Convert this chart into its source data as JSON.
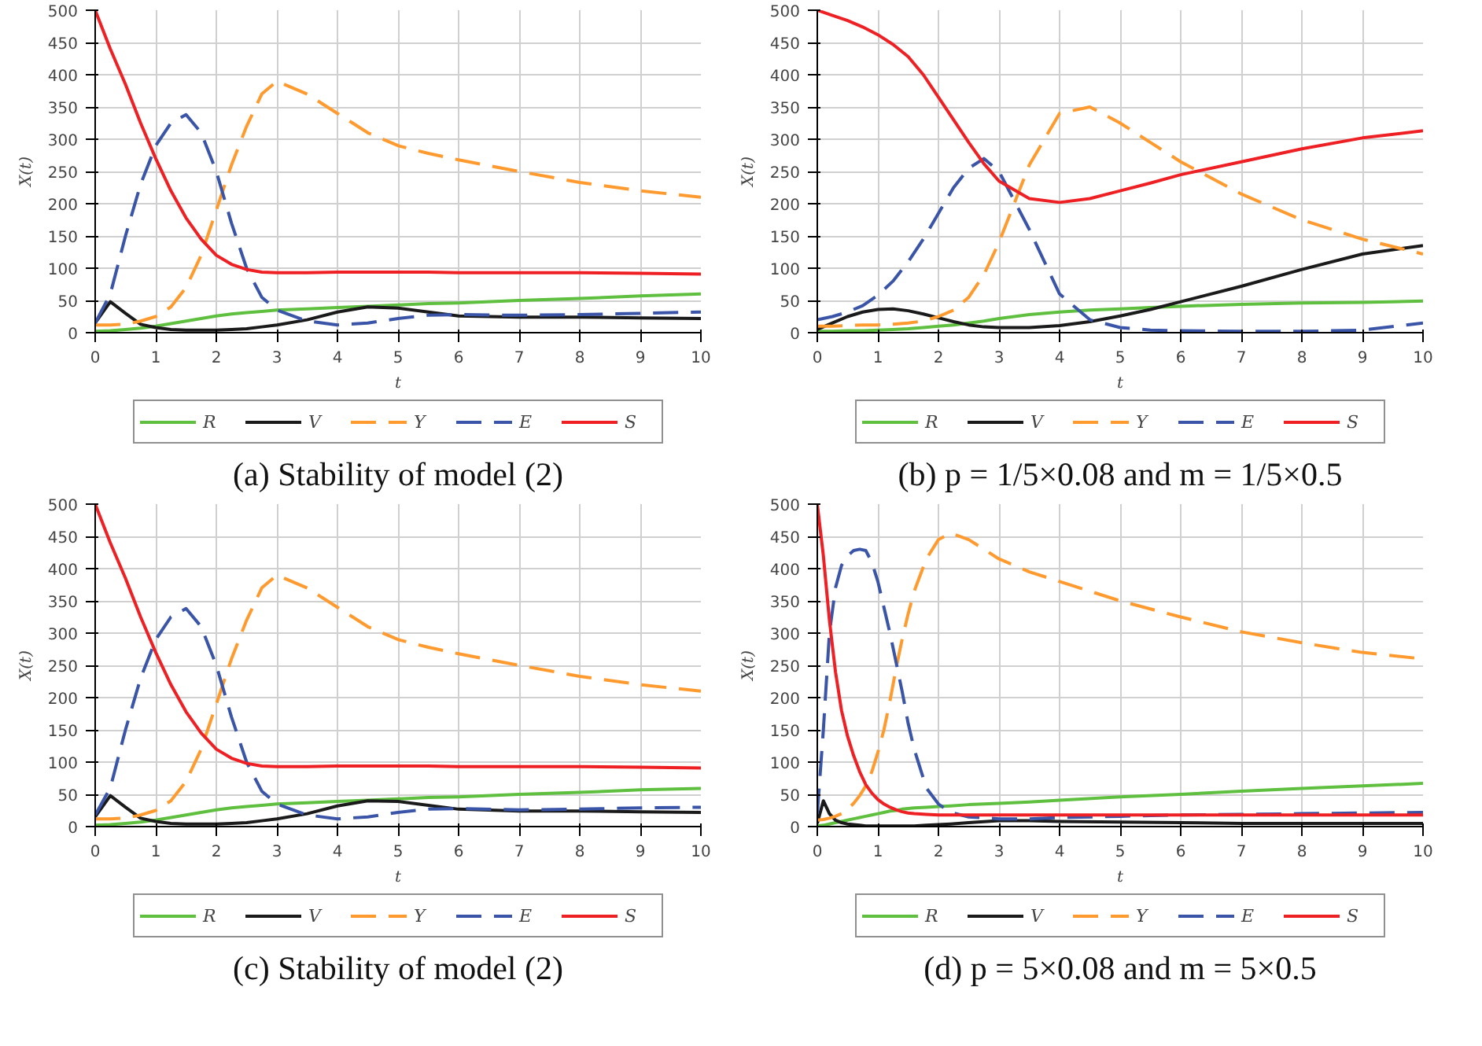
{
  "chart_data": [
    {
      "type": "line",
      "title": "(a) Stability of model (2)",
      "xlabel": "t",
      "ylabel": "X(t)",
      "xlim": [
        0,
        10
      ],
      "ylim": [
        0,
        500
      ],
      "xticks": [
        0,
        1,
        2,
        3,
        4,
        5,
        6,
        7,
        8,
        9,
        10
      ],
      "yticks": [
        0,
        50,
        100,
        150,
        200,
        250,
        300,
        350,
        400,
        450,
        500
      ],
      "grid": true,
      "legend": "bottom",
      "x": [
        0,
        0.25,
        0.5,
        0.75,
        1,
        1.25,
        1.5,
        1.75,
        2,
        2.25,
        2.5,
        2.75,
        3,
        3.5,
        4,
        4.5,
        5,
        5.5,
        6,
        7,
        8,
        9,
        10
      ],
      "series": [
        {
          "name": "R",
          "color": "#5fbf3f",
          "line_style": "solid",
          "values": [
            2,
            3,
            5,
            7,
            10,
            14,
            18,
            22,
            26,
            29,
            31,
            33,
            35,
            37,
            39,
            41,
            43,
            45,
            46,
            50,
            53,
            57,
            60
          ]
        },
        {
          "name": "V",
          "color": "#1a1a1a",
          "line_style": "solid",
          "values": [
            15,
            48,
            30,
            13,
            8,
            5,
            4,
            4,
            4,
            5,
            6,
            9,
            12,
            20,
            32,
            40,
            38,
            32,
            26,
            24,
            24,
            23,
            22
          ]
        },
        {
          "name": "Y",
          "color": "#ff9a2e",
          "line_style": "dashed",
          "values": [
            12,
            12,
            13,
            18,
            25,
            40,
            70,
            120,
            190,
            260,
            320,
            370,
            390,
            370,
            340,
            310,
            290,
            278,
            268,
            250,
            233,
            220,
            210
          ]
        },
        {
          "name": "E",
          "color": "#3a55a8",
          "line_style": "dashed",
          "values": [
            15,
            60,
            150,
            230,
            290,
            325,
            338,
            310,
            250,
            170,
            100,
            55,
            35,
            18,
            12,
            15,
            22,
            27,
            28,
            27,
            28,
            30,
            32
          ]
        },
        {
          "name": "S",
          "color": "#ee2024",
          "line_style": "solid",
          "values": [
            500,
            440,
            385,
            325,
            270,
            220,
            178,
            145,
            120,
            106,
            98,
            94,
            93,
            93,
            94,
            94,
            94,
            94,
            93,
            93,
            93,
            92,
            91
          ]
        }
      ]
    },
    {
      "type": "line",
      "title": "(b) p = 1/5×0.08 and m = 1/5×0.5",
      "xlabel": "t",
      "ylabel": "X(t)",
      "xlim": [
        0,
        10
      ],
      "ylim": [
        0,
        500
      ],
      "xticks": [
        0,
        1,
        2,
        3,
        4,
        5,
        6,
        7,
        8,
        9,
        10
      ],
      "yticks": [
        0,
        50,
        100,
        150,
        200,
        250,
        300,
        350,
        400,
        450,
        500
      ],
      "grid": true,
      "legend": "bottom",
      "x": [
        0,
        0.25,
        0.5,
        0.75,
        1,
        1.25,
        1.5,
        1.75,
        2,
        2.25,
        2.5,
        2.75,
        3,
        3.5,
        4,
        4.5,
        5,
        5.5,
        6,
        7,
        8,
        9,
        10
      ],
      "series": [
        {
          "name": "R",
          "color": "#5fbf3f",
          "line_style": "solid",
          "values": [
            2,
            2,
            3,
            3,
            4,
            5,
            6,
            8,
            10,
            12,
            15,
            18,
            22,
            28,
            32,
            35,
            37,
            39,
            41,
            44,
            46,
            47,
            49
          ]
        },
        {
          "name": "V",
          "color": "#1a1a1a",
          "line_style": "solid",
          "values": [
            5,
            15,
            25,
            32,
            36,
            37,
            34,
            29,
            23,
            17,
            12,
            9,
            8,
            8,
            11,
            17,
            26,
            36,
            48,
            72,
            98,
            122,
            135
          ]
        },
        {
          "name": "Y",
          "color": "#ff9a2e",
          "line_style": "dashed",
          "values": [
            10,
            10,
            11,
            12,
            12,
            13,
            15,
            18,
            25,
            35,
            55,
            90,
            140,
            260,
            340,
            350,
            325,
            295,
            265,
            215,
            175,
            145,
            122
          ]
        },
        {
          "name": "E",
          "color": "#3a55a8",
          "line_style": "dashed",
          "values": [
            20,
            25,
            32,
            42,
            58,
            80,
            110,
            145,
            185,
            225,
            255,
            270,
            250,
            160,
            60,
            20,
            8,
            4,
            3,
            2,
            2,
            4,
            15
          ]
        },
        {
          "name": "S",
          "color": "#ee2024",
          "line_style": "solid",
          "values": [
            500,
            492,
            484,
            474,
            462,
            447,
            428,
            400,
            365,
            330,
            295,
            262,
            235,
            208,
            202,
            208,
            220,
            232,
            245,
            265,
            285,
            302,
            313
          ]
        }
      ]
    },
    {
      "type": "line",
      "title": "(c) Stability of model (2)",
      "xlabel": "t",
      "ylabel": "X(t)",
      "xlim": [
        0,
        10
      ],
      "ylim": [
        0,
        500
      ],
      "xticks": [
        0,
        1,
        2,
        3,
        4,
        5,
        6,
        7,
        8,
        9,
        10
      ],
      "yticks": [
        0,
        50,
        100,
        150,
        200,
        250,
        300,
        350,
        400,
        450,
        500
      ],
      "grid": true,
      "legend": "bottom",
      "x": [
        0,
        0.25,
        0.5,
        0.75,
        1,
        1.25,
        1.5,
        1.75,
        2,
        2.25,
        2.5,
        2.75,
        3,
        3.5,
        4,
        4.5,
        5,
        5.5,
        6,
        7,
        8,
        9,
        10
      ],
      "series": [
        {
          "name": "R",
          "color": "#5fbf3f",
          "line_style": "solid",
          "values": [
            2,
            3,
            5,
            7,
            10,
            14,
            18,
            22,
            26,
            29,
            31,
            33,
            35,
            37,
            39,
            41,
            43,
            45,
            46,
            50,
            53,
            57,
            59
          ]
        },
        {
          "name": "V",
          "color": "#1a1a1a",
          "line_style": "solid",
          "values": [
            15,
            48,
            30,
            13,
            8,
            5,
            4,
            4,
            4,
            5,
            6,
            9,
            12,
            20,
            32,
            40,
            39,
            33,
            27,
            24,
            24,
            23,
            22
          ]
        },
        {
          "name": "Y",
          "color": "#ff9a2e",
          "line_style": "dashed",
          "values": [
            12,
            12,
            13,
            18,
            25,
            40,
            70,
            120,
            190,
            260,
            320,
            370,
            390,
            370,
            340,
            310,
            290,
            278,
            268,
            250,
            233,
            220,
            210
          ]
        },
        {
          "name": "E",
          "color": "#3a55a8",
          "line_style": "dashed",
          "values": [
            18,
            60,
            150,
            230,
            290,
            325,
            338,
            310,
            250,
            170,
            100,
            55,
            35,
            18,
            12,
            15,
            22,
            27,
            28,
            26,
            27,
            29,
            30
          ]
        },
        {
          "name": "S",
          "color": "#ee2024",
          "line_style": "solid",
          "values": [
            500,
            440,
            385,
            325,
            270,
            220,
            178,
            145,
            120,
            106,
            98,
            94,
            93,
            93,
            94,
            94,
            94,
            94,
            93,
            93,
            93,
            92,
            91
          ]
        }
      ]
    },
    {
      "type": "line",
      "title": "(d) p = 5×0.08 and m = 5×0.5",
      "xlabel": "t",
      "ylabel": "X(t)",
      "xlim": [
        0,
        10
      ],
      "ylim": [
        0,
        500
      ],
      "xticks": [
        0,
        1,
        2,
        3,
        4,
        5,
        6,
        7,
        8,
        9,
        10
      ],
      "yticks": [
        0,
        50,
        100,
        150,
        200,
        250,
        300,
        350,
        400,
        450,
        500
      ],
      "grid": true,
      "legend": "bottom",
      "x": [
        0,
        0.1,
        0.2,
        0.3,
        0.4,
        0.5,
        0.6,
        0.7,
        0.8,
        0.9,
        1,
        1.1,
        1.2,
        1.3,
        1.4,
        1.5,
        1.6,
        1.8,
        2,
        2.2,
        2.5,
        3,
        3.5,
        4,
        5,
        6,
        7,
        8,
        9,
        10
      ],
      "series": [
        {
          "name": "R",
          "color": "#5fbf3f",
          "line_style": "solid",
          "values": [
            1,
            2,
            4,
            6,
            8,
            10,
            12,
            14,
            16,
            18,
            20,
            22,
            24,
            25,
            27,
            28,
            29,
            30,
            31,
            32,
            34,
            36,
            38,
            41,
            46,
            50,
            55,
            59,
            63,
            67
          ]
        },
        {
          "name": "V",
          "color": "#1a1a1a",
          "line_style": "solid",
          "values": [
            5,
            40,
            20,
            10,
            6,
            4,
            3,
            2,
            1,
            1,
            1,
            1,
            1,
            1,
            1,
            1,
            1,
            2,
            3,
            4,
            6,
            9,
            9,
            8,
            7,
            6,
            5,
            5,
            5,
            5
          ]
        },
        {
          "name": "Y",
          "color": "#ff9a2e",
          "line_style": "dashed",
          "values": [
            10,
            11,
            13,
            16,
            20,
            27,
            36,
            48,
            63,
            85,
            115,
            150,
            195,
            245,
            290,
            330,
            365,
            415,
            445,
            455,
            445,
            415,
            395,
            380,
            350,
            325,
            302,
            285,
            270,
            260
          ]
        },
        {
          "name": "E",
          "color": "#3a55a8",
          "line_style": "dashed",
          "values": [
            20,
            150,
            300,
            370,
            405,
            420,
            428,
            430,
            428,
            410,
            380,
            340,
            300,
            255,
            210,
            160,
            120,
            60,
            35,
            22,
            15,
            12,
            12,
            14,
            16,
            18,
            19,
            20,
            21,
            22
          ]
        },
        {
          "name": "S",
          "color": "#ee2024",
          "line_style": "solid",
          "values": [
            500,
            420,
            320,
            240,
            180,
            140,
            110,
            85,
            65,
            52,
            42,
            35,
            30,
            26,
            23,
            21,
            20,
            19,
            18,
            18,
            18,
            18,
            18,
            18,
            18,
            18,
            18,
            18,
            18,
            18
          ]
        }
      ]
    }
  ]
}
